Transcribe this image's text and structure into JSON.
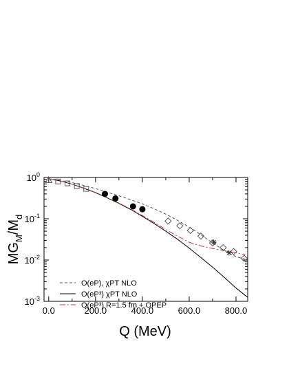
{
  "chart_data": {
    "type": "line",
    "xlabel": "Q (MeV)",
    "ylabel": {
      "main": "MG",
      "sub1": "M",
      "mid": "/M",
      "sub2": "d"
    },
    "xlim": [
      -20,
      850
    ],
    "ylim": [
      0.001,
      1
    ],
    "yscale": "log",
    "grid": false,
    "legend_position": "lower-left",
    "x_ticks": [
      {
        "value": 0,
        "label": "0.0"
      },
      {
        "value": 200,
        "label": "200.0"
      },
      {
        "value": 400,
        "label": "400.0"
      },
      {
        "value": 600,
        "label": "600.0"
      },
      {
        "value": 800,
        "label": "800.0"
      }
    ],
    "y_ticks": [
      {
        "value": 1,
        "base": "10",
        "exp": "0"
      },
      {
        "value": 0.1,
        "base": "10",
        "exp": "-1"
      },
      {
        "value": 0.01,
        "base": "10",
        "exp": "-2"
      },
      {
        "value": 0.001,
        "base": "10",
        "exp": "-3"
      }
    ],
    "series": [
      {
        "name": "O(eP), χPT NLO",
        "style": "dashed",
        "color": "#555555",
        "x": [
          0,
          50,
          100,
          150,
          200,
          250,
          300,
          350,
          400,
          450,
          500,
          550,
          600,
          650,
          700,
          750,
          800,
          840
        ],
        "y": [
          0.93,
          0.85,
          0.75,
          0.64,
          0.54,
          0.44,
          0.36,
          0.29,
          0.23,
          0.175,
          0.13,
          0.092,
          0.063,
          0.041,
          0.026,
          0.017,
          0.012,
          0.0105
        ]
      },
      {
        "name": "O(eP³) χPT NLO",
        "style": "solid",
        "color": "#000000",
        "x": [
          0,
          50,
          100,
          150,
          200,
          250,
          300,
          350,
          400,
          450,
          500,
          550,
          600,
          650,
          700,
          750,
          800,
          850
        ],
        "y": [
          0.93,
          0.82,
          0.69,
          0.55,
          0.43,
          0.32,
          0.235,
          0.168,
          0.115,
          0.077,
          0.05,
          0.032,
          0.0195,
          0.0115,
          0.0067,
          0.0038,
          0.0021,
          0.00125
        ]
      },
      {
        "name": "O(eP³) R=1.5 fm + OPEP",
        "style": "dashdot",
        "color": "#cc3333",
        "x": [
          0,
          50,
          100,
          150,
          200,
          250,
          300,
          350,
          400,
          450,
          500,
          550,
          600,
          650,
          700,
          750,
          800,
          840
        ],
        "y": [
          0.93,
          0.82,
          0.69,
          0.555,
          0.435,
          0.325,
          0.24,
          0.172,
          0.12,
          0.082,
          0.055,
          0.038,
          0.027,
          0.022,
          0.019,
          0.017,
          0.015,
          0.0135
        ]
      }
    ],
    "points": [
      {
        "marker": "triangle",
        "x": [
          0
        ],
        "y": [
          0.86
        ]
      },
      {
        "marker": "square",
        "x": [
          40,
          80,
          120,
          160
        ],
        "y": [
          0.8,
          0.72,
          0.62,
          0.53
        ]
      },
      {
        "marker": "filled-circle",
        "x": [
          240,
          285,
          360,
          400
        ],
        "y": [
          0.4,
          0.31,
          0.2,
          0.17
        ]
      },
      {
        "marker": "diamond",
        "x": [
          510,
          560,
          605,
          650,
          700,
          745,
          790,
          835
        ],
        "y": [
          0.088,
          0.068,
          0.052,
          0.038,
          0.026,
          0.02,
          0.016,
          0.011
        ]
      },
      {
        "marker": "star",
        "x": [
          705,
          770
        ],
        "y": [
          0.027,
          0.015
        ]
      }
    ]
  }
}
